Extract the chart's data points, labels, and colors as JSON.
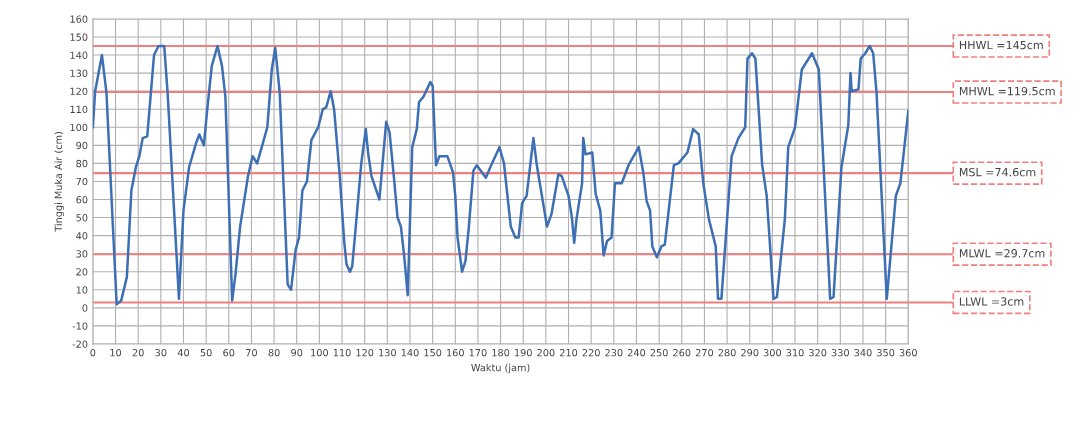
{
  "chart_data": {
    "type": "line",
    "xlabel": "Waktu (jam)",
    "ylabel": "Tinggi Muka Air (cm)",
    "x": [
      0,
      1,
      4,
      6,
      10.5,
      12.5,
      15,
      17,
      19,
      20.5,
      22,
      24,
      27,
      29,
      31.5,
      33,
      38,
      40,
      42.5,
      45.5,
      47,
      49,
      50.5,
      52.5,
      55,
      57,
      58.5,
      61.5,
      63,
      65,
      68.5,
      70.5,
      72.5,
      75,
      77,
      79,
      80.5,
      82.5,
      86,
      87.5,
      89.5,
      91,
      92.5,
      94.5,
      96.5,
      99.5,
      101.5,
      103,
      105,
      106.5,
      109,
      111,
      112,
      113.5,
      114.5,
      116,
      118.5,
      120.5,
      121.5,
      123,
      126.5,
      129.5,
      131,
      133,
      134.5,
      136,
      137.5,
      139,
      141,
      143,
      144,
      146,
      149,
      150,
      151.5,
      153,
      156.5,
      159,
      160,
      161,
      163,
      164.5,
      166,
      168,
      169.5,
      173.5,
      175.5,
      179.5,
      181.5,
      184.5,
      186.5,
      188,
      189.5,
      191.5,
      194.5,
      196,
      200.5,
      202.5,
      205.5,
      207,
      210,
      211.5,
      212.5,
      213.5,
      216,
      216.5,
      217.5,
      220.5,
      222,
      224,
      225.5,
      227,
      229,
      230.5,
      233.5,
      236.5,
      241,
      243,
      244.5,
      246,
      247,
      249,
      251,
      252.5,
      256.5,
      258.5,
      262.5,
      265,
      267.5,
      269.5,
      272,
      275,
      276,
      277.5,
      282,
      285,
      288,
      289,
      291,
      292.5,
      295.5,
      297.5,
      300.5,
      302,
      305.5,
      307,
      310,
      313,
      317.5,
      320.5,
      325.5,
      327,
      330.5,
      333.5,
      334.5,
      335,
      338,
      339,
      341,
      343,
      344.5,
      346,
      350.5,
      354.5,
      356.5,
      358,
      360
    ],
    "series": [
      {
        "color": "#3c6fb4",
        "values": [
          100,
          120,
          140,
          119,
          2,
          4,
          17,
          65,
          78,
          84,
          94,
          95,
          140,
          145,
          145,
          119,
          5,
          54,
          78,
          91,
          96,
          90,
          110,
          134,
          145,
          134,
          117,
          4,
          19,
          45,
          73,
          84,
          80,
          91,
          100,
          132,
          144,
          119,
          13,
          10,
          32,
          39,
          65,
          70,
          93,
          100,
          110,
          111,
          120,
          110,
          73,
          36,
          24,
          20,
          23,
          44,
          80,
          99,
          86,
          73,
          60,
          103,
          97,
          71,
          50,
          45,
          28,
          7,
          89,
          99,
          114,
          117,
          125,
          123,
          79,
          84,
          84,
          75,
          62,
          39,
          20,
          26,
          45,
          76,
          79,
          72,
          78,
          89,
          80,
          45,
          39,
          39,
          58,
          62,
          94,
          79,
          45,
          52,
          74,
          73,
          62,
          50,
          36,
          49,
          69,
          94,
          85,
          86,
          63,
          54,
          29,
          37,
          39,
          69,
          69,
          79,
          89,
          75,
          59,
          54,
          34,
          28,
          34,
          35,
          79,
          80,
          86,
          99,
          96,
          69,
          49,
          34,
          5,
          5,
          84,
          94,
          100,
          138,
          141,
          138,
          79,
          62,
          5,
          6,
          49,
          89,
          100,
          132,
          141,
          132,
          5,
          6,
          78,
          101,
          130,
          120,
          121,
          138,
          141,
          145,
          141,
          119,
          5,
          62,
          69,
          86,
          109
        ]
      }
    ],
    "xlim": [
      0,
      360
    ],
    "xticks": [
      0,
      10,
      20,
      30,
      40,
      50,
      60,
      70,
      80,
      90,
      100,
      110,
      120,
      130,
      140,
      150,
      160,
      170,
      180,
      190,
      200,
      210,
      220,
      230,
      240,
      250,
      260,
      270,
      280,
      290,
      300,
      310,
      320,
      330,
      340,
      350,
      360
    ],
    "ylim": [
      -20,
      160
    ],
    "yticks": [
      -20,
      -10,
      0,
      10,
      20,
      30,
      40,
      50,
      60,
      70,
      80,
      90,
      100,
      110,
      120,
      130,
      140,
      150,
      160
    ],
    "grid": true,
    "marker": "none",
    "line_style": "solid",
    "legend": false,
    "ref_lines": [
      {
        "axis": "y",
        "value": 145,
        "label": "HHWL =145cm",
        "color": "#f08080"
      },
      {
        "axis": "y",
        "value": 119.5,
        "label": "MHWL =119.5cm",
        "color": "#f08080"
      },
      {
        "axis": "y",
        "value": 74.6,
        "label": "MSL =74.6cm",
        "color": "#f08080"
      },
      {
        "axis": "y",
        "value": 29.7,
        "label": "MLWL =29.7cm",
        "color": "#f08080"
      },
      {
        "axis": "y",
        "value": 3,
        "label": "LLWL =3cm",
        "color": "#f08080"
      }
    ]
  }
}
